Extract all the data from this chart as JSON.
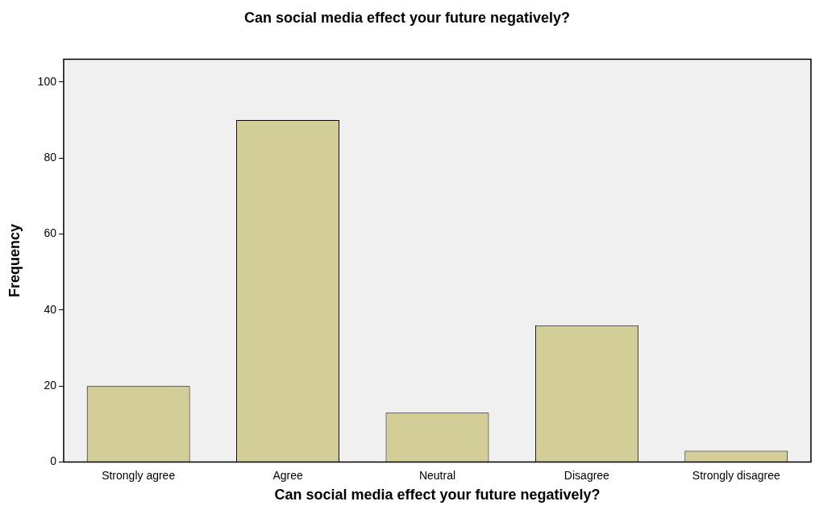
{
  "chart_data": {
    "type": "bar",
    "title": "Can social media effect your future negatively?",
    "xlabel": "Can social media effect your future negatively?",
    "ylabel": "Frequency",
    "categories": [
      "Strongly agree",
      "Agree",
      "Neutral",
      "Disagree",
      "Strongly disagree"
    ],
    "values": [
      20,
      90,
      13,
      36,
      3
    ],
    "color": "#d3ce97",
    "ylim": [
      0,
      106
    ],
    "yticks": [
      0,
      20,
      40,
      60,
      80,
      100
    ],
    "grid": false,
    "legend": false
  }
}
